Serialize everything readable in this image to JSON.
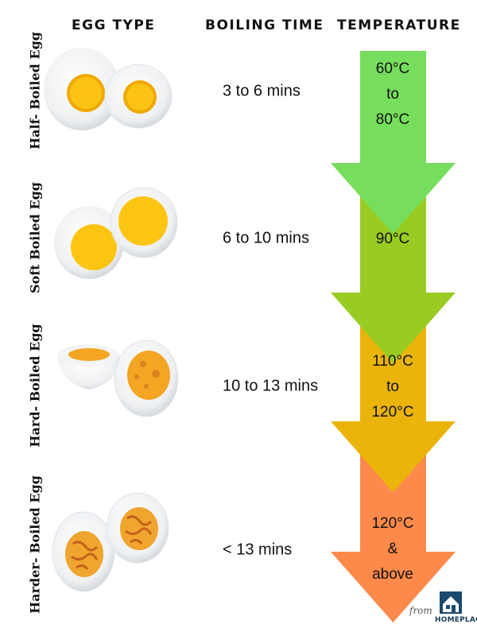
{
  "headers": {
    "egg_type": "EGG TYPE",
    "boiling_time": "BOILING TIME",
    "temperature": "TEMPERATURE"
  },
  "rows": [
    {
      "egg_type": "Half- Boiled Egg",
      "time": "3 to 6 mins",
      "temp_lines": [
        "60°C",
        "to",
        "80°C"
      ],
      "color": "#77dd5c"
    },
    {
      "egg_type": "Soft Boiled Egg",
      "time": "6 to 10 mins",
      "temp_lines": [
        "90°C"
      ],
      "color": "#99cc22"
    },
    {
      "egg_type": "Hard- Boiled Egg",
      "time": "10 to 13 mins",
      "temp_lines": [
        "110°C",
        "to",
        "120°C"
      ],
      "color": "#eab40a"
    },
    {
      "egg_type": "Harder- Boiled Egg",
      "time": "< 13 mins",
      "temp_lines": [
        "120°C",
        "&",
        "above"
      ],
      "color": "#fd8a4a"
    }
  ],
  "branding": {
    "from": "from",
    "name": "HOMEPLACE.IN"
  }
}
